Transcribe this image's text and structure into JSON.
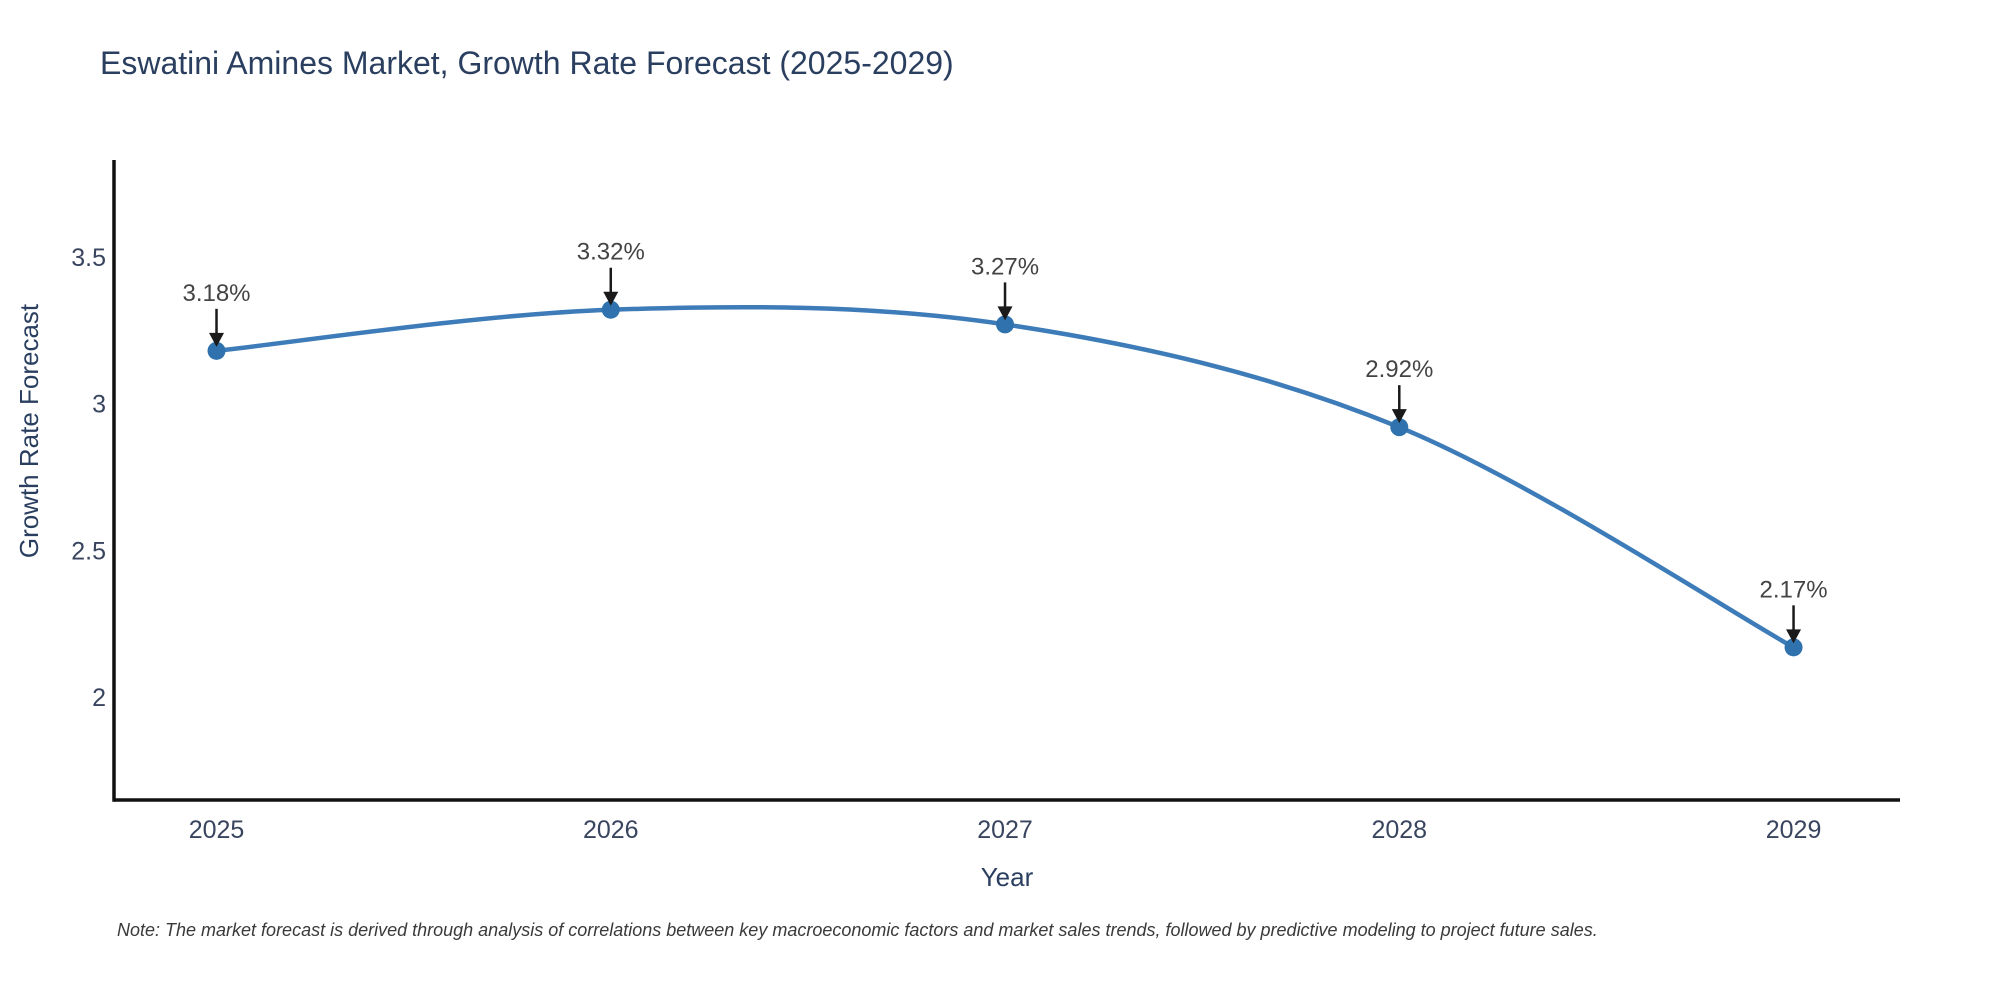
{
  "page": {
    "background": "#ffffff"
  },
  "title": {
    "text": "Eswatini Amines Market, Growth Rate Forecast (2025-2029)",
    "color": "#2a3f5f"
  },
  "note": {
    "text": "Note: The market forecast is derived through analysis of correlations between key macroeconomic factors and market sales trends, followed by predictive modeling to project future sales.",
    "color": "#3a3a3a"
  },
  "chart_data": {
    "type": "line",
    "line_shape": "spline",
    "title": "Eswatini Amines Market, Growth Rate Forecast (2025-2029)",
    "x": [
      2025,
      2026,
      2027,
      2028,
      2029
    ],
    "y": [
      3.18,
      3.32,
      3.27,
      2.92,
      2.17
    ],
    "point_labels": [
      "3.18%",
      "3.32%",
      "3.27%",
      "2.92%",
      "2.17%"
    ],
    "xlabel": "Year",
    "ylabel": "Growth Rate Forecast",
    "xtick_values": [
      2025,
      2026,
      2027,
      2028,
      2029
    ],
    "xtick_labels": [
      "2025",
      "2026",
      "2027",
      "2028",
      "2029"
    ],
    "ytick_values": [
      2,
      2.5,
      3,
      3.5
    ],
    "ytick_labels": [
      "2",
      "2.5",
      "3",
      "3.5"
    ],
    "xlim": [
      2024.74,
      2029.27
    ],
    "ylim": [
      1.65,
      3.83
    ],
    "grid": false,
    "legend": false,
    "annotation_style": "value-label-with-down-arrow-to-point",
    "colors": {
      "line": "#3d7cb8",
      "marker": "#2f72ad",
      "axis_line": "#111111",
      "tick_text": "#39455e",
      "axis_title_text": "#2a3f5f",
      "annotation_text": "#444444",
      "arrow": "#1a1a1a"
    }
  }
}
